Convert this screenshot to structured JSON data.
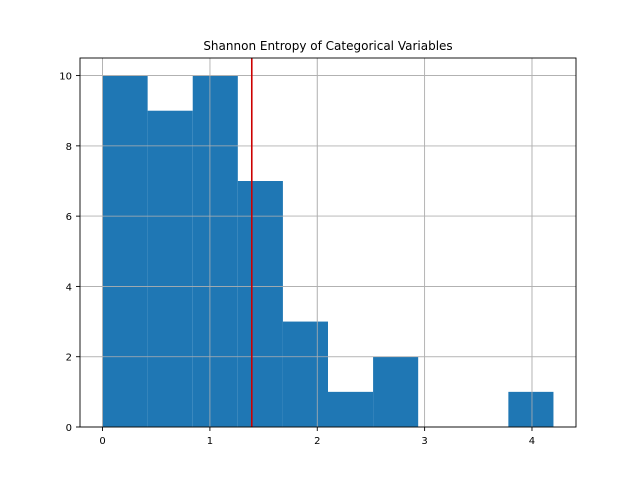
{
  "chart_data": {
    "type": "bar",
    "title": "Shannon Entropy of Categorical Variables",
    "xlabel": "",
    "ylabel": "",
    "xlim": [
      -0.21,
      4.41
    ],
    "ylim": [
      0,
      10.5
    ],
    "grid": true,
    "bin_edges": [
      0.0,
      0.42,
      0.84,
      1.26,
      1.68,
      2.1,
      2.52,
      2.94,
      3.36,
      3.78,
      4.2
    ],
    "values": [
      10,
      9,
      10,
      7,
      3,
      1,
      2,
      0,
      0,
      1
    ],
    "xticks": [
      0,
      1,
      2,
      3,
      4
    ],
    "yticks": [
      0,
      2,
      4,
      6,
      8,
      10
    ],
    "reference_line": {
      "x": 1.39,
      "color": "#cc0000"
    },
    "bar_color": "#1f77b4",
    "grid_color": "#b0b0b0"
  }
}
